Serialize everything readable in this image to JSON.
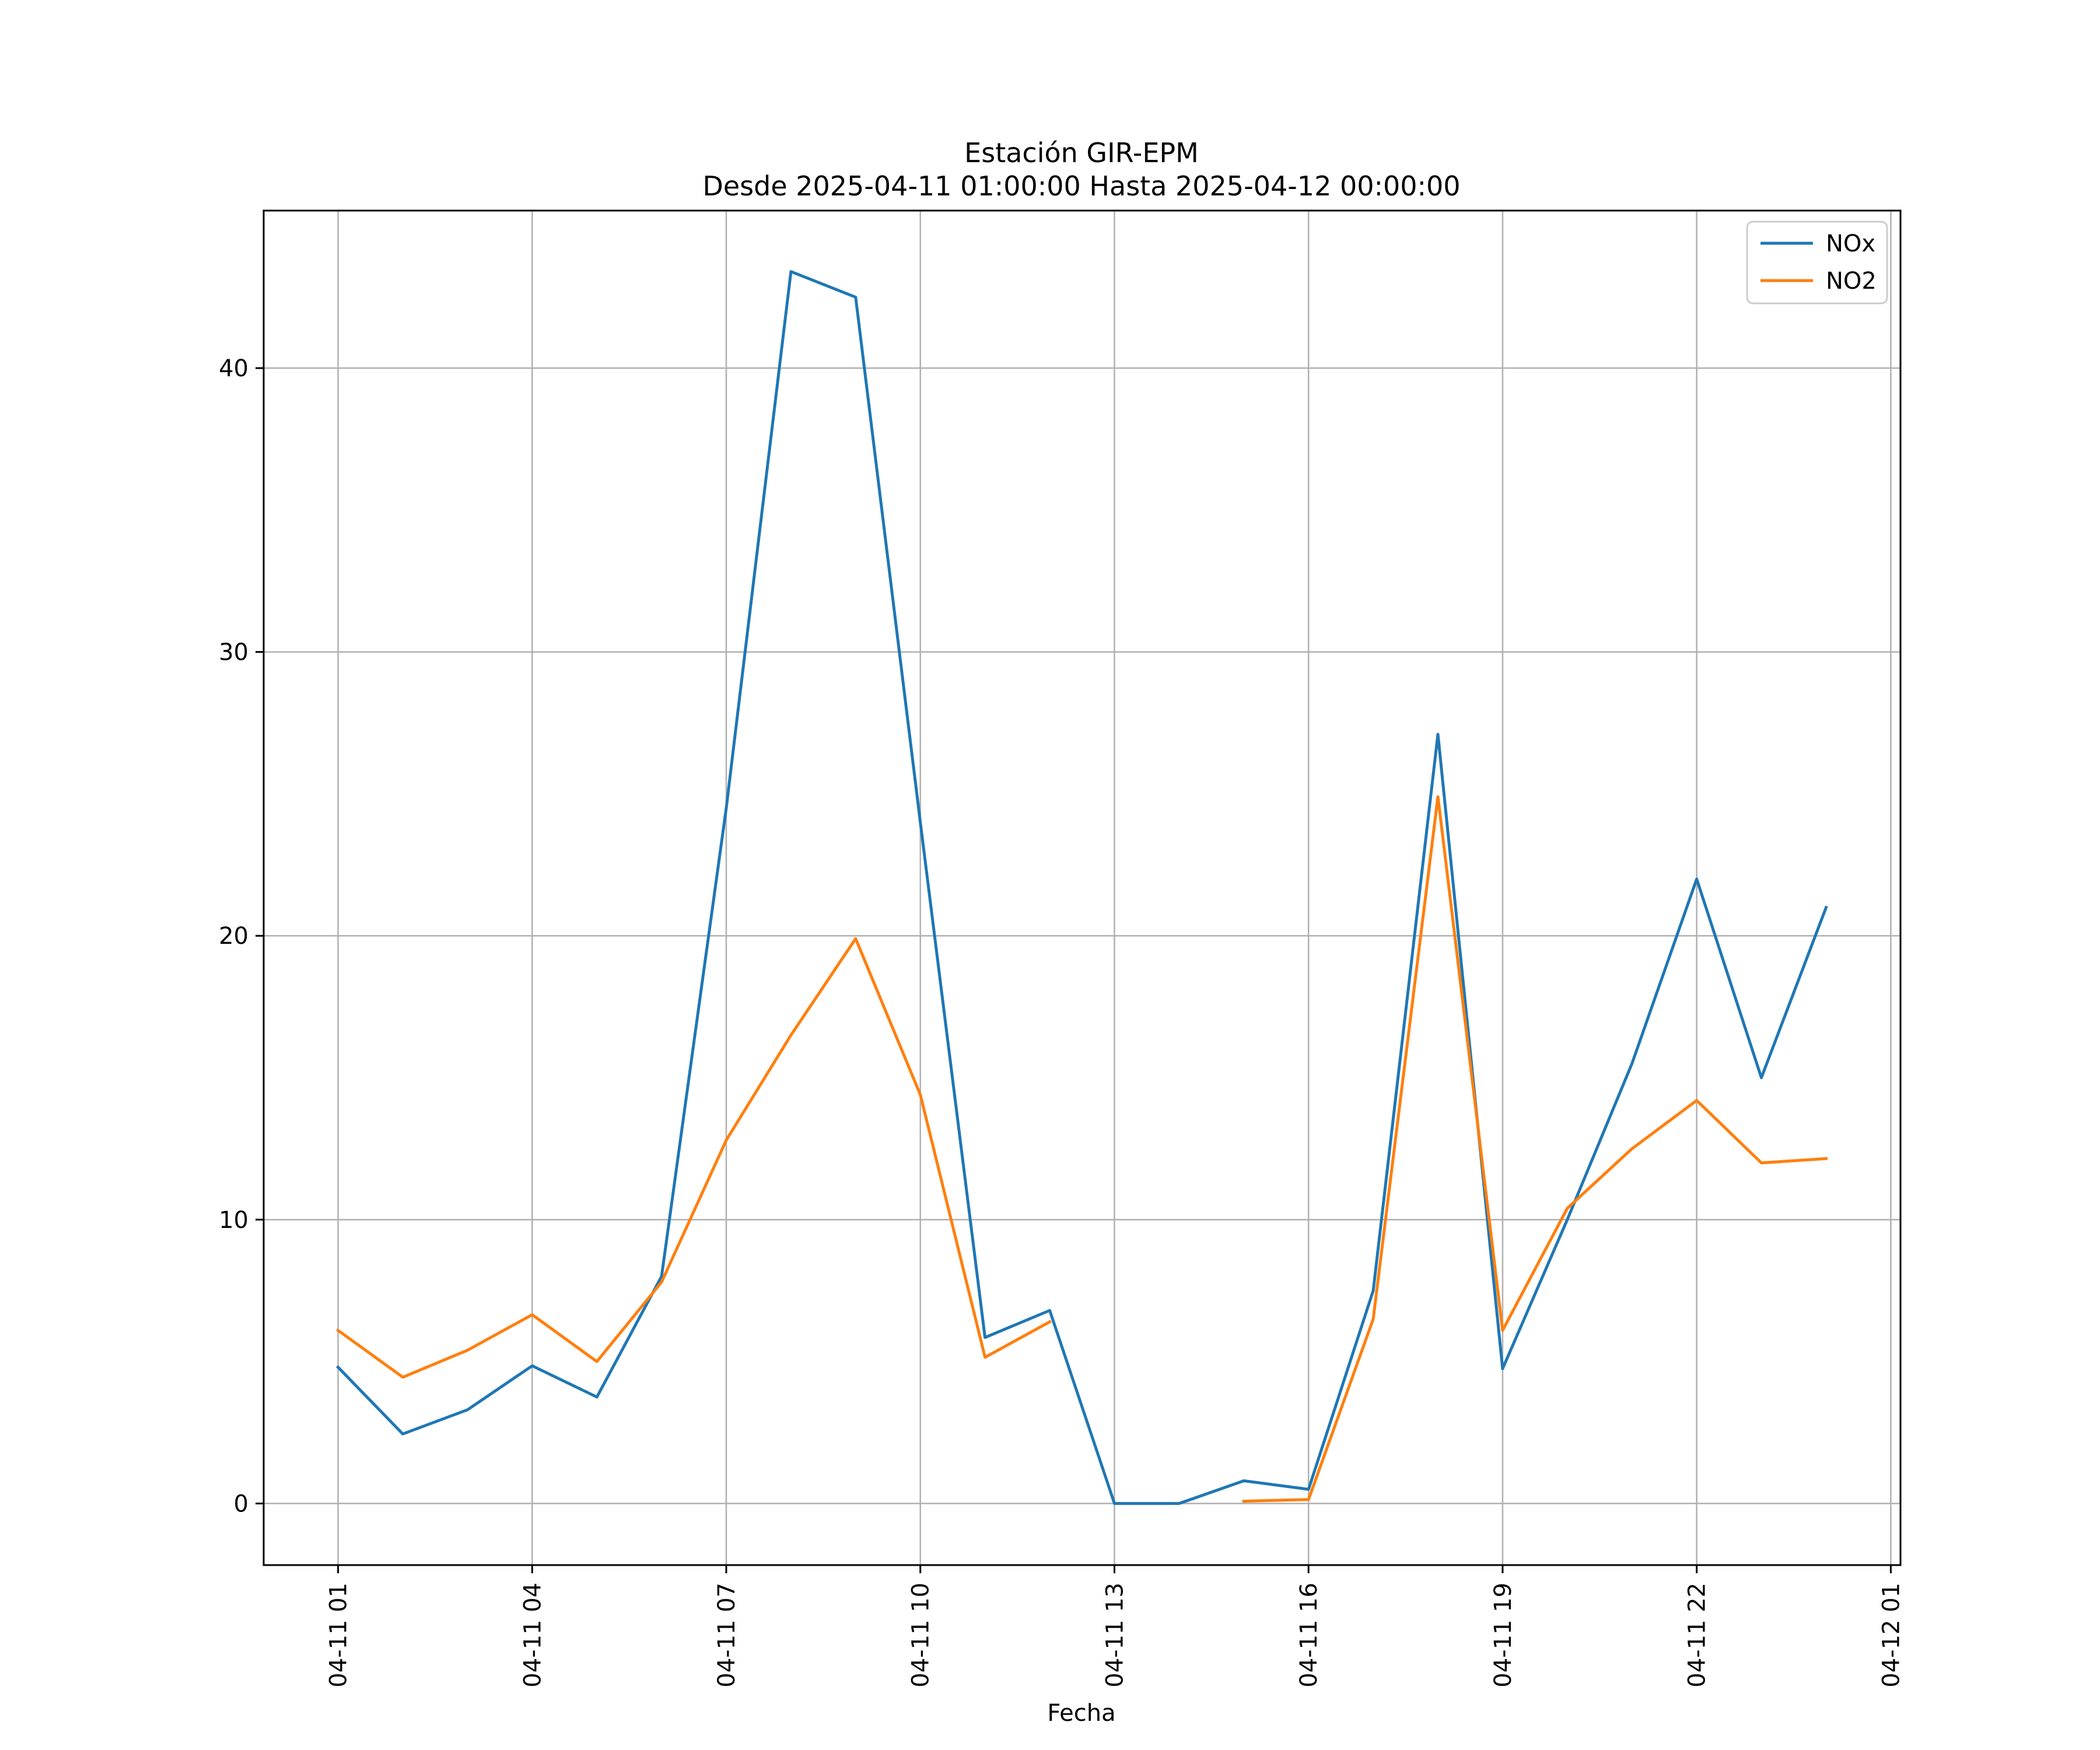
{
  "chart_data": {
    "type": "line",
    "title": "Estación GIR-EPM",
    "subtitle": "Desde 2025-04-11 01:00:00 Hasta 2025-04-12 00:00:00",
    "xlabel": "Fecha",
    "ylabel": "",
    "x": [
      "01:00",
      "02:00",
      "03:00",
      "04:00",
      "05:00",
      "06:00",
      "07:00",
      "08:00",
      "09:00",
      "10:00",
      "11:00",
      "12:00",
      "13:00",
      "14:00",
      "15:00",
      "16:00",
      "17:00",
      "18:00",
      "19:00",
      "20:00",
      "21:00",
      "22:00",
      "23:00",
      "00:00"
    ],
    "series": [
      {
        "name": "NOx",
        "color": "#1f77b4",
        "values": [
          4.8,
          2.45,
          3.3,
          4.85,
          3.75,
          8.0,
          24.5,
          43.4,
          42.5,
          24.0,
          5.85,
          6.8,
          0.0,
          0.0,
          0.8,
          0.5,
          7.5,
          27.1,
          4.75,
          10.0,
          15.5,
          22.0,
          15.0,
          21.0
        ]
      },
      {
        "name": "NO2",
        "color": "#ff7f0e",
        "values": [
          6.1,
          4.45,
          5.4,
          6.65,
          5.0,
          7.8,
          12.8,
          16.5,
          19.9,
          14.4,
          5.15,
          6.4,
          null,
          null,
          0.08,
          0.14,
          6.5,
          24.9,
          6.1,
          10.4,
          12.5,
          14.2,
          12.0,
          12.15
        ]
      }
    ],
    "xticks": [
      "04-11 01",
      "04-11 04",
      "04-11 07",
      "04-11 10",
      "04-11 13",
      "04-11 16",
      "04-11 19",
      "04-11 22",
      "04-12 01"
    ],
    "yticks": [
      "0",
      "10",
      "20",
      "30",
      "40"
    ],
    "ylim": [
      -2.17,
      45.55
    ],
    "xlim_hours": [
      -1.15,
      24.15
    ],
    "grid": true,
    "legend_position": "top-right"
  }
}
